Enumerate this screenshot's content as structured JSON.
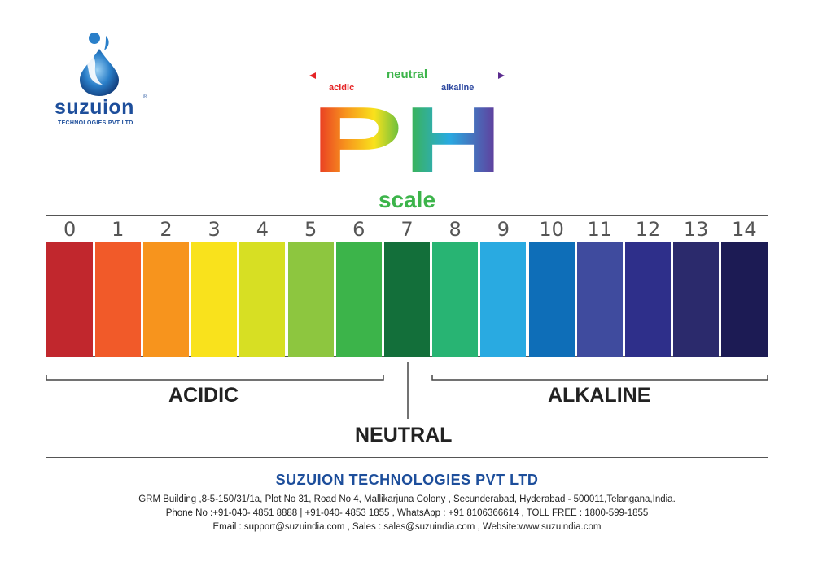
{
  "logo": {
    "name": "suzuion",
    "subtitle": "TECHNOLOGIES PVT LTD",
    "registered": "®"
  },
  "header": {
    "neutral": "neutral",
    "acidic": "acidic",
    "alkaline": "alkaline",
    "ph": "PH",
    "scale": "scale"
  },
  "chart_data": {
    "type": "table",
    "values": [
      "0",
      "1",
      "2",
      "3",
      "4",
      "5",
      "6",
      "7",
      "8",
      "9",
      "10",
      "11",
      "12",
      "13",
      "14"
    ],
    "colors": [
      "#c1272d",
      "#f15a29",
      "#f7941d",
      "#f9e21c",
      "#d7df23",
      "#8dc63f",
      "#3cb44a",
      "#136f3a",
      "#28b473",
      "#29aae1",
      "#0e6eb8",
      "#3f4b9e",
      "#2e2f8a",
      "#2b2a6c",
      "#1c1b54"
    ]
  },
  "zones": {
    "acidic": "ACIDIC",
    "neutral": "NEUTRAL",
    "alkaline": "ALKALINE"
  },
  "footer": {
    "company": "SUZUION TECHNOLOGIES PVT LTD",
    "address": "GRM Building ,8-5-150/31/1a, Plot No 31, Road No 4, Mallikarjuna Colony , Secunderabad, Hyderabad - 500011,Telangana,India.",
    "phones": "Phone No :+91-040- 4851 8888 | +91-040- 4853 1855  ,  WhatsApp : +91 8106366614 ,  TOLL FREE : 1800-599-1855",
    "contact": "Email : support@suzuindia.com , Sales : sales@suzuindia.com , Website:www.suzuindia.com"
  }
}
